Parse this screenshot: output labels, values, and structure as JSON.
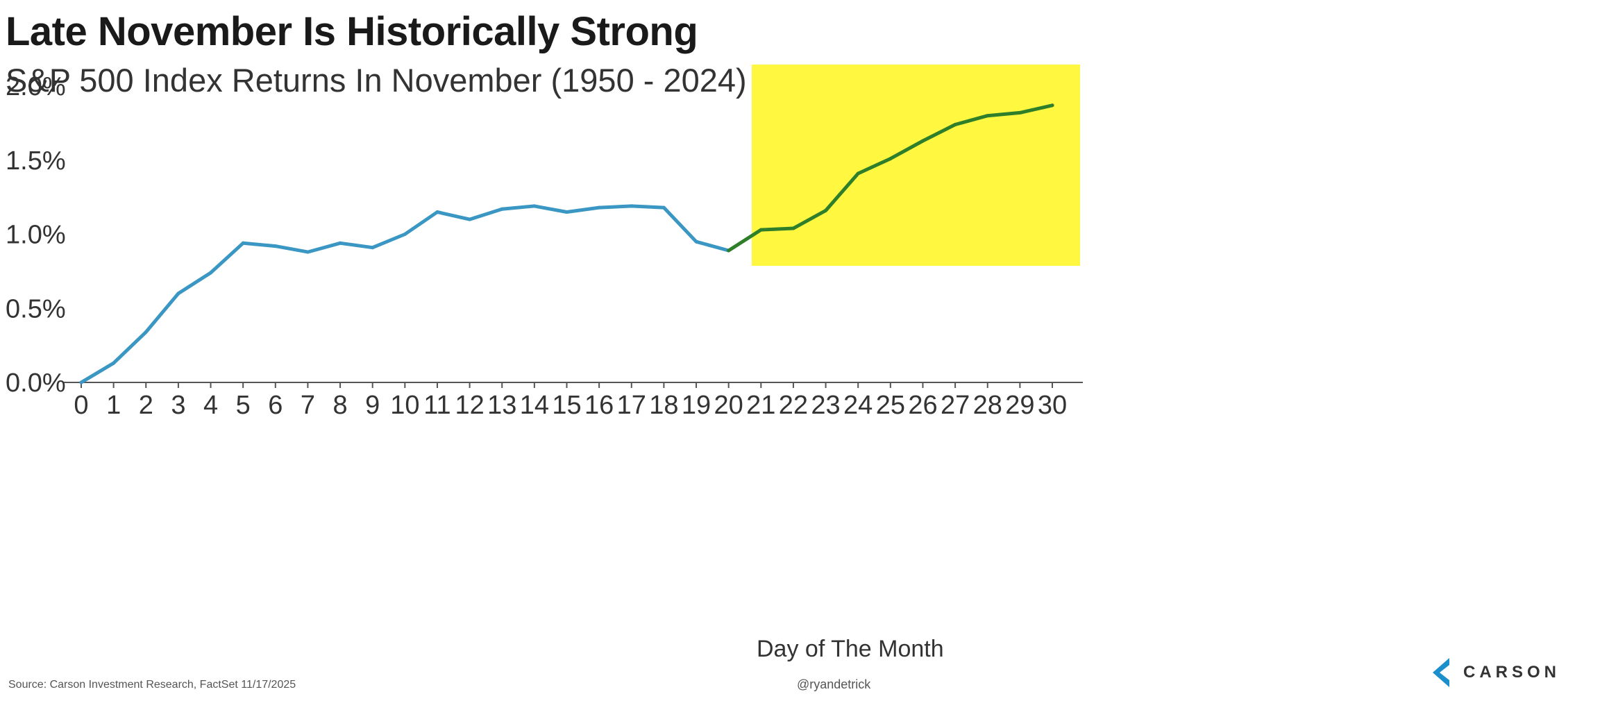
{
  "title": "Late November Is Historically Strong",
  "subtitle": "S&P 500 Index Returns In November (1950 - 2024)",
  "footer": {
    "source": "Source: Carson Investment Research, FactSet 11/17/2025",
    "handle": "@ryandetrick",
    "logo_text": "CARSON"
  },
  "colors": {
    "line_main": "#3a96c2",
    "line_highlight": "#2f7f2a",
    "highlight_box": "#fff740",
    "axis": "#555555",
    "logo_accent": "#1a8fcb"
  },
  "chart_data": {
    "type": "line",
    "title": "Late November Is Historically Strong",
    "subtitle": "S&P 500 Index Returns In November (1950 - 2024)",
    "xlabel": "Day of The Month",
    "ylabel": "",
    "ylim": [
      0,
      2.0
    ],
    "y_ticks": [
      "0.0%",
      "0.5%",
      "1.0%",
      "1.5%",
      "2.0%"
    ],
    "y_tick_values": [
      0,
      0.5,
      1.0,
      1.5,
      2.0
    ],
    "x": [
      0,
      1,
      2,
      3,
      4,
      5,
      6,
      7,
      8,
      9,
      10,
      11,
      12,
      13,
      14,
      15,
      16,
      17,
      18,
      19,
      20,
      21,
      22,
      23,
      24,
      25,
      26,
      27,
      28,
      29,
      30
    ],
    "series": [
      {
        "values": [
          0.0,
          0.13,
          0.34,
          0.6,
          0.74,
          0.94,
          0.92,
          0.88,
          0.94,
          0.91,
          1.0,
          1.15,
          1.1,
          1.17,
          1.19,
          1.15,
          1.18,
          1.19,
          1.18,
          0.95,
          0.89,
          1.03,
          1.04,
          1.16,
          1.41,
          1.51,
          1.63,
          1.74,
          1.8,
          1.82,
          1.87
        ]
      }
    ],
    "highlight": {
      "x_from": 20,
      "x_to": 30
    },
    "grid": false,
    "legend": "none"
  }
}
